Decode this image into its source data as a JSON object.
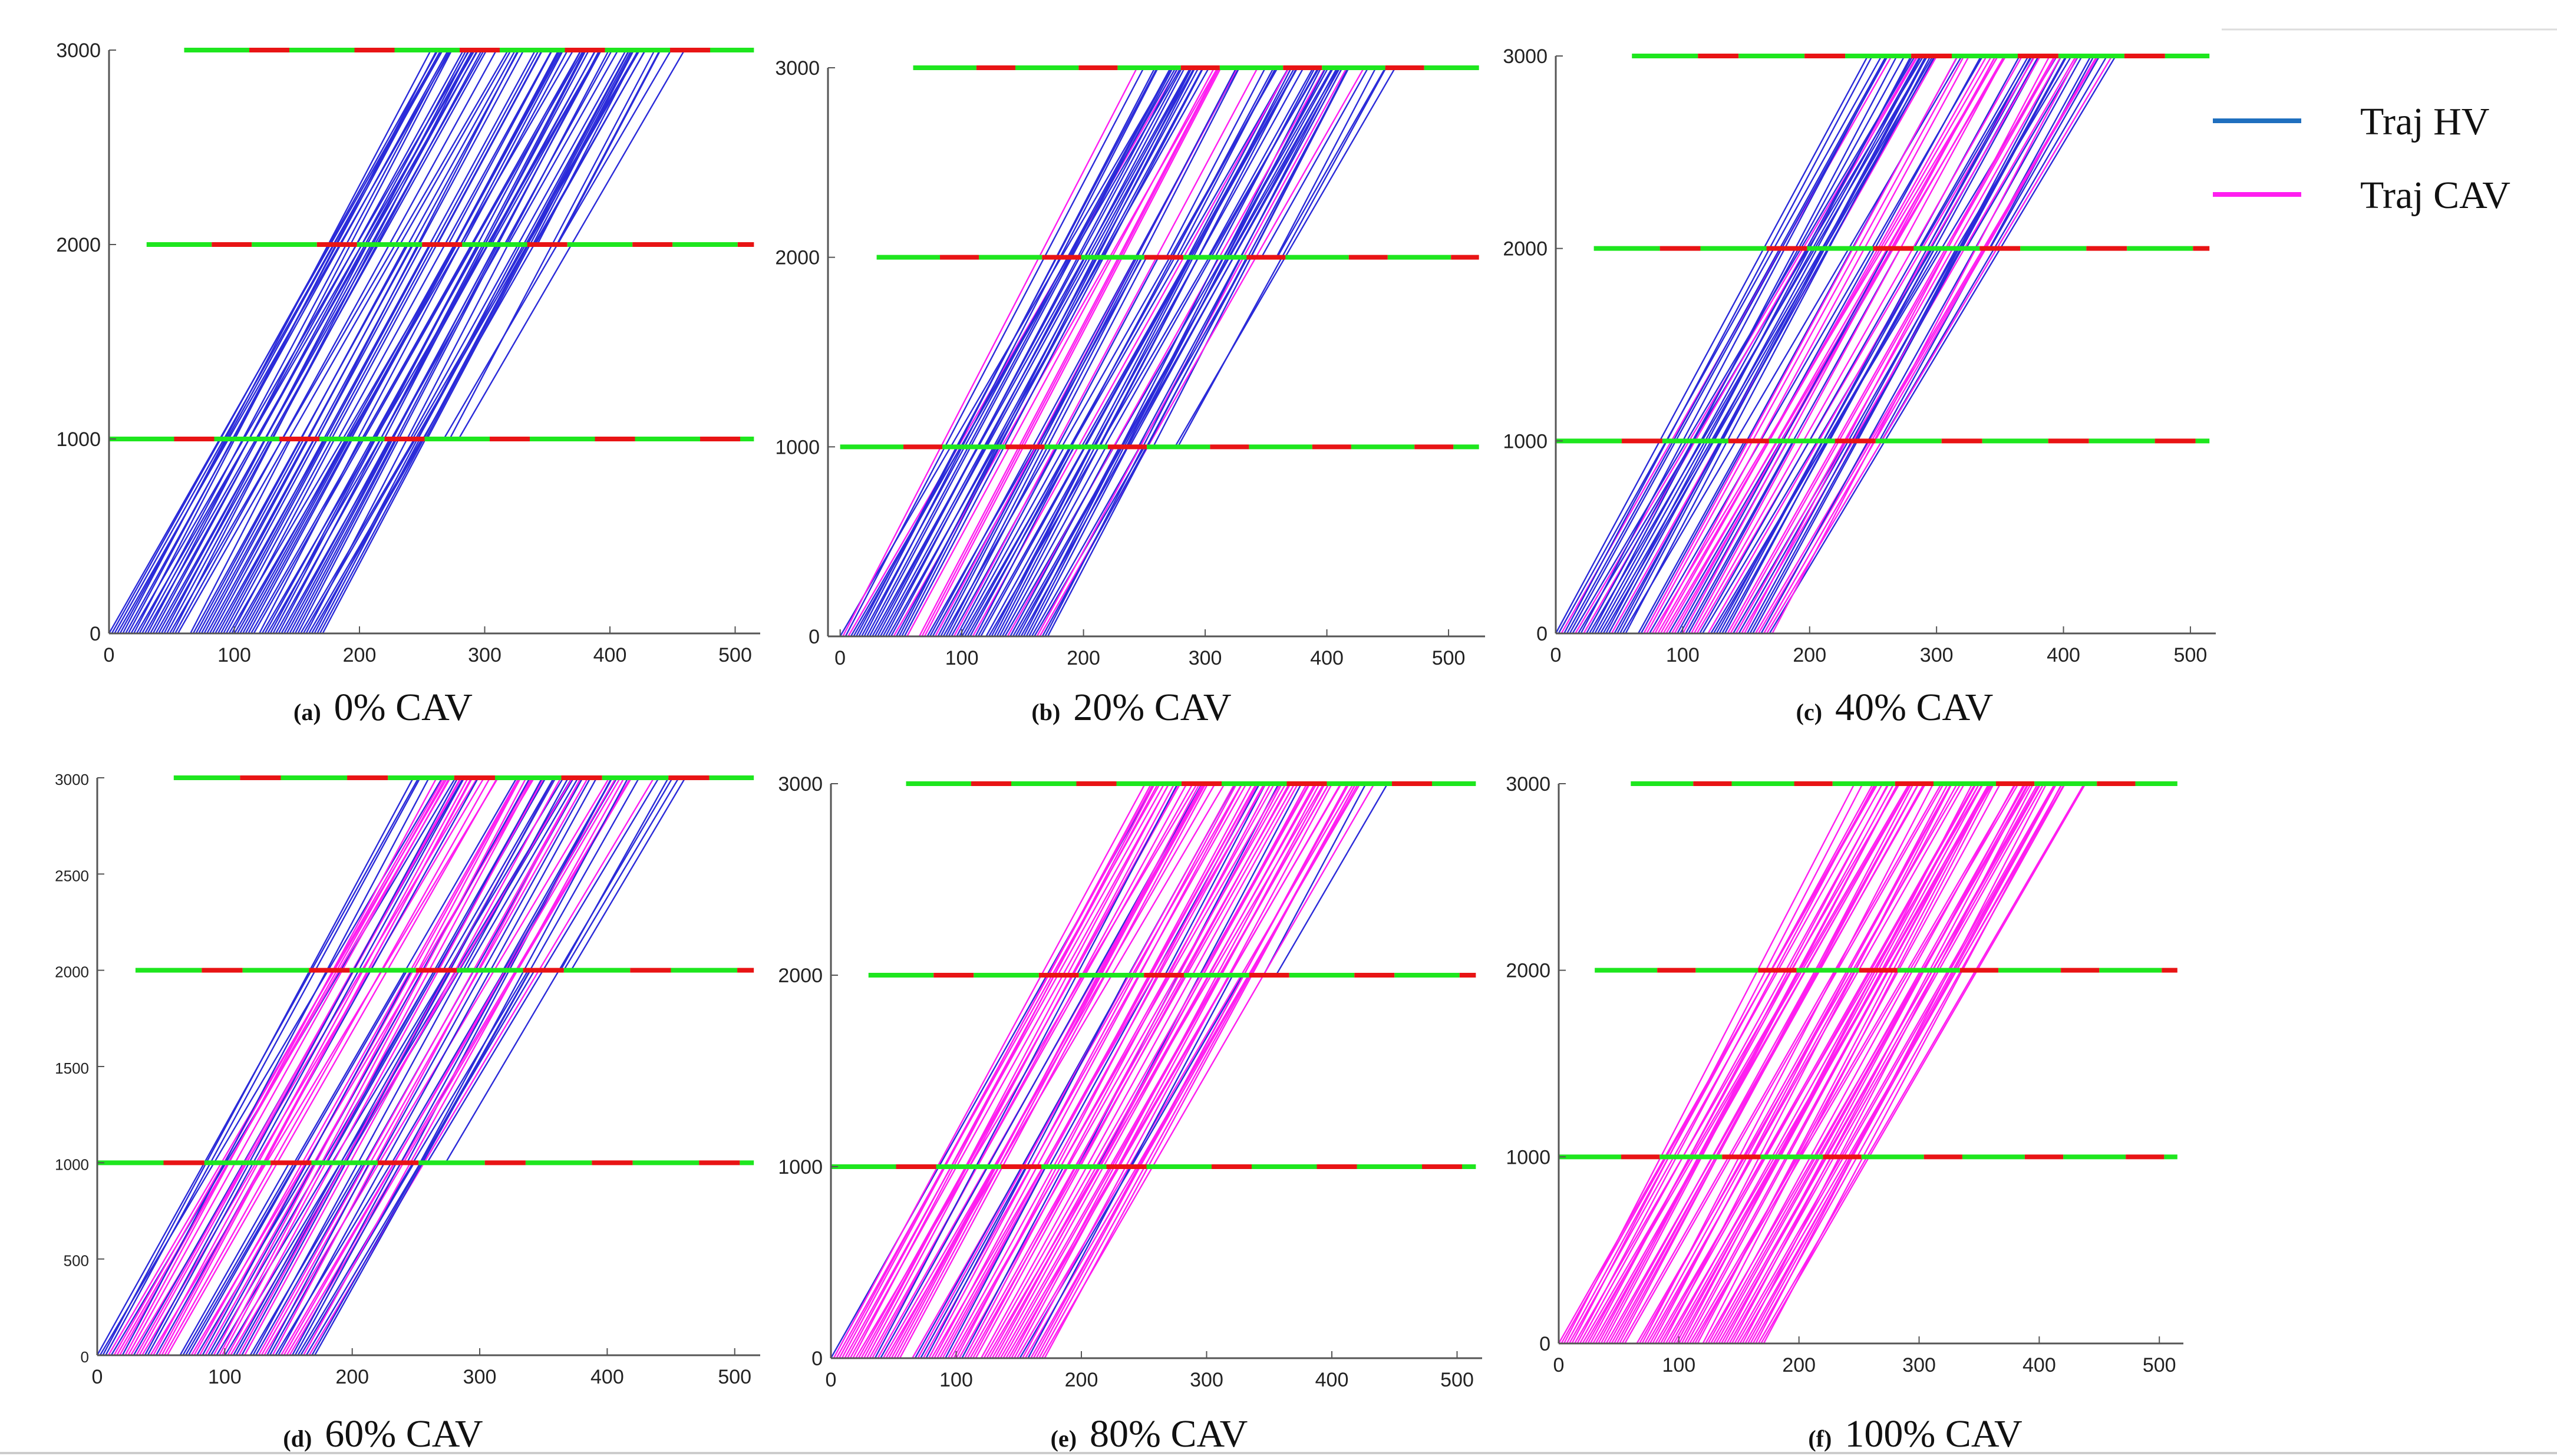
{
  "colors": {
    "hv": "#2b2bd9",
    "cav": "#ff1ef0",
    "green": "#1ee61e",
    "red": "#e81414",
    "axis": "#555555",
    "text": "#111111",
    "legend_hv": "#1f6fbf"
  },
  "legend": {
    "hv_label": "Traj HV",
    "cav_label": "Traj CAV"
  },
  "chart_data": [
    {
      "type": "line",
      "id": "a",
      "caption_letter": "(a)",
      "caption_text": "0% CAV",
      "cav_share": 0,
      "xlim": [
        0,
        520
      ],
      "ylim": [
        0,
        3000
      ],
      "xticks": [
        0,
        100,
        200,
        300,
        400,
        500
      ],
      "yticks": [
        0,
        1000,
        2000,
        3000
      ],
      "signal_positions": [
        1000,
        2000,
        3000
      ],
      "signal_start_x": [
        0,
        30,
        60
      ],
      "xlabel": "",
      "ylabel": ""
    },
    {
      "type": "line",
      "id": "b",
      "caption_letter": "(b)",
      "caption_text": "20% CAV",
      "cav_share": 0.2,
      "xlim": [
        -10,
        530
      ],
      "ylim": [
        0,
        3000
      ],
      "xticks": [
        0,
        100,
        200,
        300,
        400,
        500
      ],
      "yticks": [
        0,
        1000,
        2000,
        3000
      ],
      "signal_positions": [
        1000,
        2000,
        3000
      ],
      "signal_start_x": [
        0,
        30,
        60
      ],
      "xlabel": "",
      "ylabel": ""
    },
    {
      "type": "line",
      "id": "c",
      "caption_letter": "(c)",
      "caption_text": "40% CAV",
      "cav_share": 0.4,
      "xlim": [
        0,
        520
      ],
      "ylim": [
        0,
        3000
      ],
      "xticks": [
        0,
        100,
        200,
        300,
        400,
        500
      ],
      "yticks": [
        0,
        1000,
        2000,
        3000
      ],
      "signal_positions": [
        1000,
        2000,
        3000
      ],
      "signal_start_x": [
        0,
        30,
        60
      ],
      "xlabel": "",
      "ylabel": ""
    },
    {
      "type": "line",
      "id": "d",
      "caption_letter": "(d)",
      "caption_text": "60% CAV",
      "cav_share": 0.6,
      "xlim": [
        0,
        520
      ],
      "ylim": [
        0,
        3000
      ],
      "xticks": [
        0,
        100,
        200,
        300,
        400,
        500
      ],
      "yticks": [
        0,
        500,
        1000,
        1500,
        2000,
        2500,
        3000
      ],
      "signal_positions": [
        1000,
        2000,
        3000
      ],
      "signal_start_x": [
        0,
        30,
        60
      ],
      "xlabel": "",
      "ylabel": ""
    },
    {
      "type": "line",
      "id": "e",
      "caption_letter": "(e)",
      "caption_text": "80% CAV",
      "cav_share": 0.8,
      "xlim": [
        0,
        520
      ],
      "ylim": [
        0,
        3000
      ],
      "xticks": [
        0,
        100,
        200,
        300,
        400,
        500
      ],
      "yticks": [
        0,
        1000,
        2000,
        3000
      ],
      "signal_positions": [
        1000,
        2000,
        3000
      ],
      "signal_start_x": [
        0,
        30,
        60
      ],
      "xlabel": "",
      "ylabel": ""
    },
    {
      "type": "line",
      "id": "f",
      "caption_letter": "(f)",
      "caption_text": "100% CAV",
      "cav_share": 1,
      "xlim": [
        0,
        520
      ],
      "ylim": [
        0,
        3000
      ],
      "xticks": [
        0,
        100,
        200,
        300,
        400,
        500
      ],
      "yticks": [
        0,
        1000,
        2000,
        3000
      ],
      "signal_positions": [
        1000,
        2000,
        3000
      ],
      "signal_start_x": [
        0,
        30,
        60
      ],
      "xlabel": "",
      "ylabel": ""
    }
  ]
}
